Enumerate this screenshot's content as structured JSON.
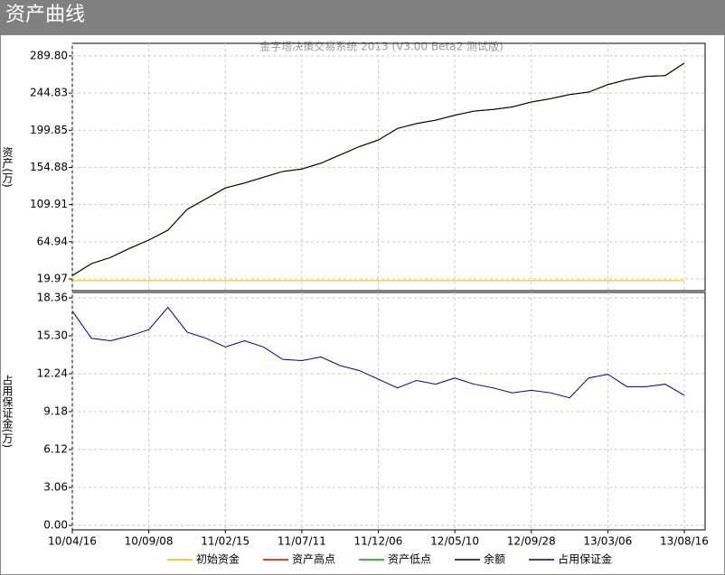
{
  "window_title": "资产曲线",
  "chart_data": [
    {
      "type": "line",
      "title": "金字塔决策交易系统 2013 (V3.00 Beta2 测试版)",
      "y_label": "资产(万)",
      "ylim": [
        5.8,
        305
      ],
      "yticks": [
        19.97,
        64.94,
        109.91,
        154.88,
        199.85,
        244.83,
        {
          "value": 289.8,
          "label": "289.80"
        }
      ],
      "grid": true,
      "series": [
        {
          "name": "初始资金",
          "color": "#e0c000",
          "values": [
            18,
            18,
            18,
            18,
            18,
            18,
            18,
            18,
            18,
            18,
            18,
            18,
            18,
            18,
            18,
            18,
            18,
            18,
            18,
            18,
            18,
            18,
            18,
            18,
            18,
            18,
            18,
            18,
            18,
            18,
            18,
            18,
            18
          ]
        },
        {
          "name": "资产高点",
          "color": "#e00000",
          "values": [
            24,
            38.5,
            46,
            57,
            67,
            79,
            104,
            117,
            130,
            136,
            143,
            150,
            153,
            160,
            170,
            180,
            188,
            202,
            208,
            212,
            218,
            223,
            225,
            228,
            234,
            238,
            243,
            246,
            255,
            261,
            265,
            266,
            281
          ]
        },
        {
          "name": "资产低点",
          "color": "#00a000",
          "values": [
            24,
            38.5,
            46,
            57,
            67,
            79,
            104,
            117,
            130,
            136,
            143,
            150,
            153,
            160,
            170,
            180,
            188,
            202,
            208,
            212,
            218,
            223,
            225,
            228,
            234,
            238,
            243,
            246,
            255,
            261,
            265,
            266,
            281
          ]
        },
        {
          "name": "余额",
          "color": "#000000",
          "values": [
            24,
            38.5,
            46,
            57,
            67,
            79,
            104,
            117,
            130,
            136,
            143,
            150,
            153,
            160,
            170,
            180,
            188,
            202,
            208,
            212,
            218,
            223,
            225,
            228,
            234,
            238,
            243,
            246,
            255,
            261,
            265,
            266,
            281
          ]
        }
      ]
    },
    {
      "type": "line",
      "y_label": "占用保证金(万)",
      "ylim": [
        -0.36,
        18.8
      ],
      "yticks": [
        {
          "value": 0,
          "label": "0.00"
        },
        3.06,
        6.12,
        9.18,
        12.24,
        {
          "value": 15.3,
          "label": "15.30"
        },
        18.36
      ],
      "grid": true,
      "categories": [
        "10/04/16",
        null,
        null,
        null,
        "10/09/08",
        null,
        null,
        null,
        "11/02/15",
        null,
        null,
        null,
        "11/07/11",
        null,
        null,
        null,
        "11/12/06",
        null,
        null,
        null,
        "12/05/10",
        null,
        null,
        null,
        "12/09/28",
        null,
        null,
        null,
        "13/03/06",
        null,
        null,
        null,
        "13/08/16"
      ],
      "series": [
        {
          "name": "占用保证金",
          "color": "#000080",
          "values": [
            17.3,
            15.1,
            14.9,
            15.3,
            15.8,
            17.6,
            15.6,
            15.1,
            14.4,
            14.9,
            14.4,
            13.4,
            13.3,
            13.6,
            12.9,
            12.5,
            11.8,
            11.1,
            11.7,
            11.4,
            11.9,
            11.4,
            11.1,
            10.7,
            10.9,
            10.7,
            10.3,
            11.9,
            12.2,
            11.2,
            11.2,
            11.4,
            10.5
          ]
        }
      ]
    }
  ]
}
